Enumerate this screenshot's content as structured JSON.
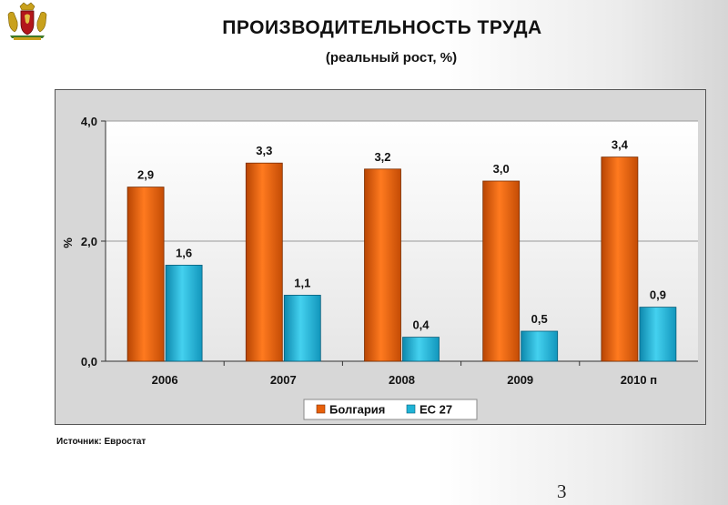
{
  "slide": {
    "title": "ПРОИЗВОДИТЕЛЬНОСТЬ ТРУДА",
    "subtitle": "(реальный рост, %)",
    "source": "Источник: Евростат",
    "page_number": "3",
    "logo_icon": "bulgarian-coat-of-arms-icon"
  },
  "chart_data": {
    "type": "bar",
    "categories": [
      "2006",
      "2007",
      "2008",
      "2009",
      "2010 п"
    ],
    "series": [
      {
        "name": "Болгария",
        "values": [
          2.9,
          3.3,
          3.2,
          3.0,
          3.4
        ],
        "labels": [
          "2,9",
          "3,3",
          "3,2",
          "3,0",
          "3,4"
        ],
        "color": "#e8600a"
      },
      {
        "name": "ЕС 27",
        "values": [
          1.6,
          1.1,
          0.4,
          0.5,
          0.9
        ],
        "labels": [
          "1,6",
          "1,1",
          "0,4",
          "0,5",
          "0,9"
        ],
        "color": "#1fb3d6"
      }
    ],
    "ylabel": "%",
    "ylim": [
      0,
      4
    ],
    "yticks": [
      0,
      2,
      4
    ],
    "ytick_labels": [
      "0,0",
      "2,0",
      "4,0"
    ],
    "grid": true,
    "legend": "bottom"
  }
}
